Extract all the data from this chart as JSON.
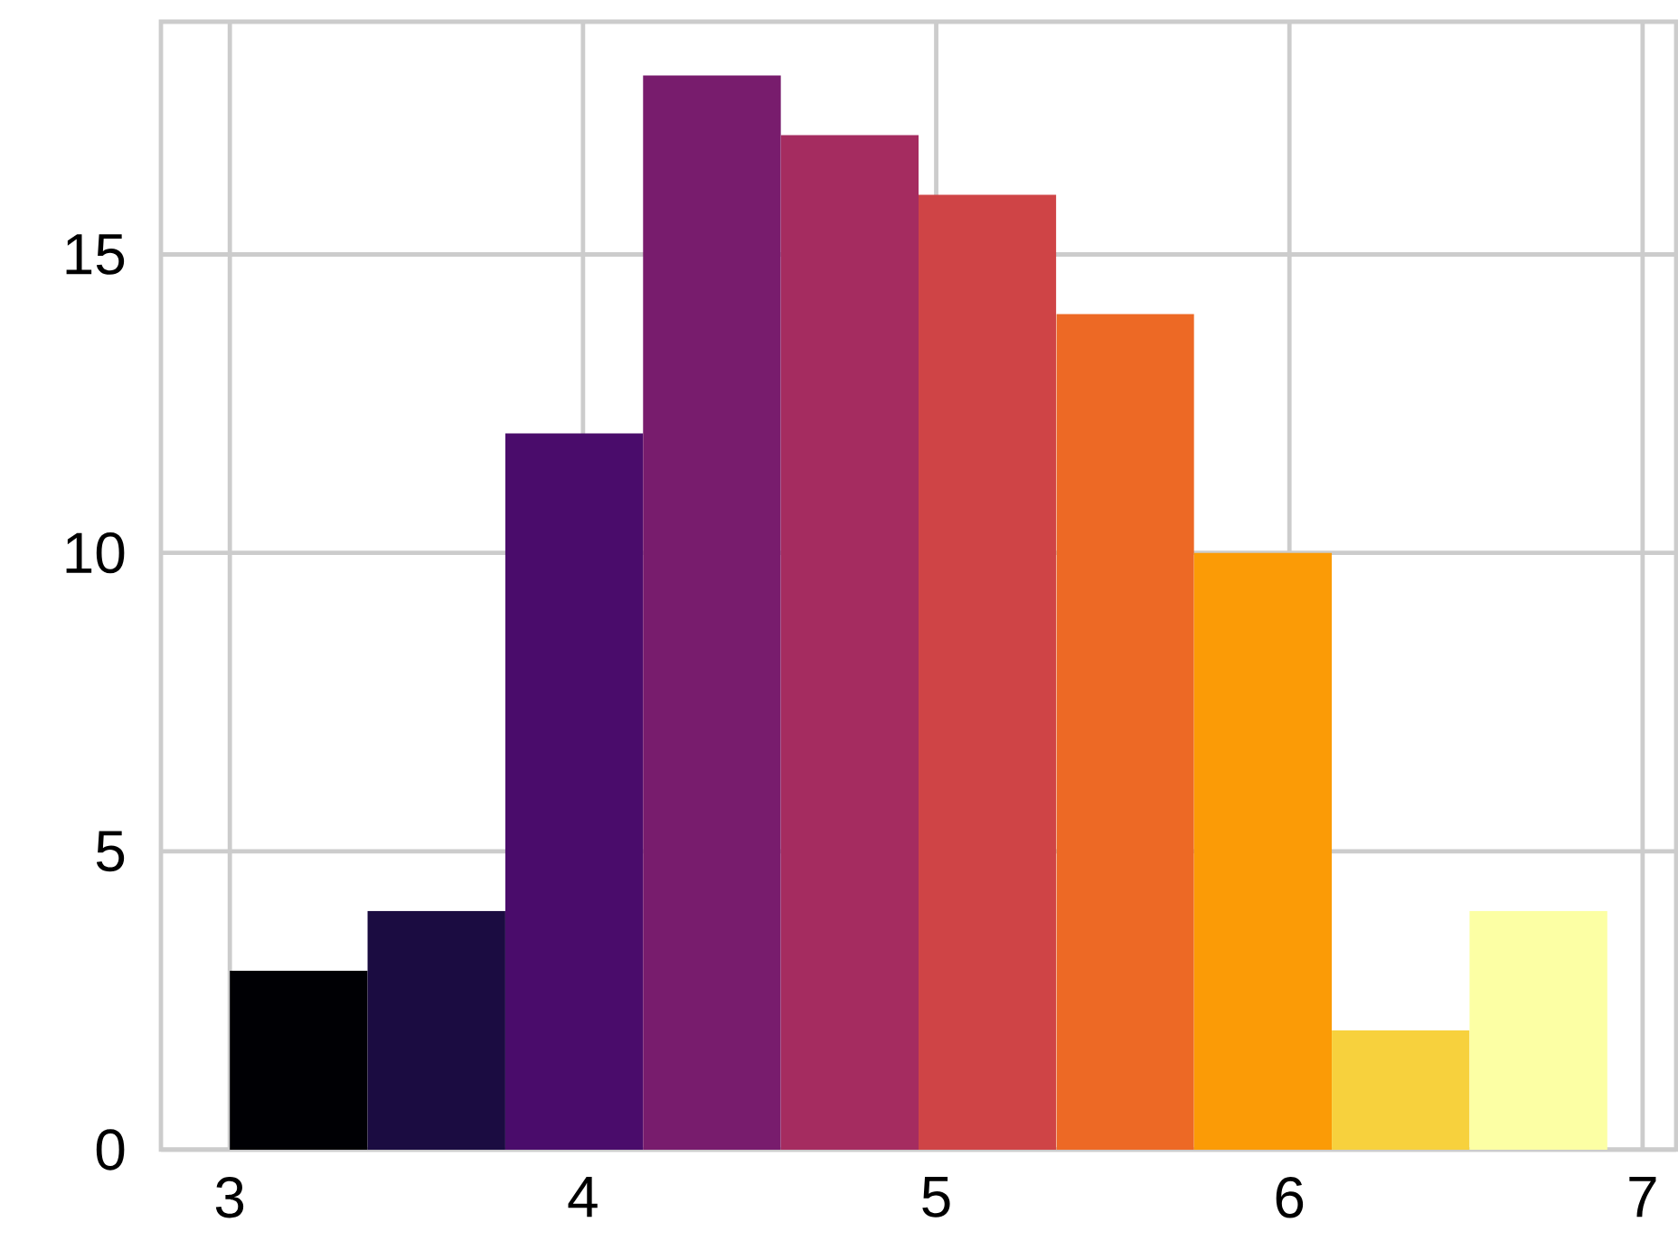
{
  "chart_data": {
    "type": "histogram",
    "bins": [
      3.0,
      3.39,
      3.78,
      4.17,
      4.56,
      4.95,
      5.34,
      5.73,
      6.12,
      6.51,
      6.9
    ],
    "values": [
      3,
      4,
      12,
      18,
      17,
      16,
      14,
      10,
      2,
      4
    ],
    "colors": [
      "#000004",
      "#1b0c41",
      "#4a0c6b",
      "#781c6d",
      "#a52c60",
      "#cf4446",
      "#ed6925",
      "#fb9b06",
      "#f7d13d",
      "#fcffa4"
    ],
    "xlim": [
      2.805,
      7.095
    ],
    "ylim": [
      0,
      18.9
    ],
    "xticks": [
      3,
      4,
      5,
      6,
      7
    ],
    "yticks": [
      0,
      5,
      10,
      15
    ],
    "grid": true
  }
}
